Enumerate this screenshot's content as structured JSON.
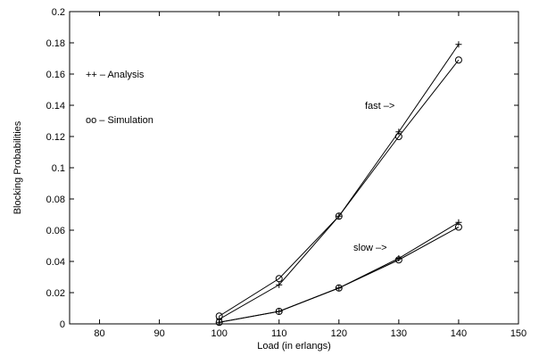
{
  "chart_data": {
    "type": "line",
    "title": "",
    "xlabel": "Load (in erlangs)",
    "ylabel": "Blocking Probabilities",
    "xlim": [
      75,
      150
    ],
    "ylim": [
      0,
      0.2
    ],
    "xticks": [
      80,
      90,
      100,
      110,
      120,
      130,
      140,
      150
    ],
    "yticks": [
      0,
      0.02,
      0.04,
      0.06,
      0.08,
      0.1,
      0.12,
      0.14,
      0.16,
      0.18,
      0.2
    ],
    "grid": false,
    "series": [
      {
        "group": "fast",
        "marker": "plus",
        "x": [
          100,
          110,
          120,
          130,
          140
        ],
        "y": [
          0.003,
          0.025,
          0.069,
          0.123,
          0.179
        ]
      },
      {
        "group": "fast",
        "marker": "circle",
        "x": [
          100,
          110,
          120,
          130,
          140
        ],
        "y": [
          0.005,
          0.029,
          0.069,
          0.12,
          0.169
        ]
      },
      {
        "group": "slow",
        "marker": "plus",
        "x": [
          100,
          110,
          120,
          130,
          140
        ],
        "y": [
          0.001,
          0.008,
          0.023,
          0.042,
          0.065
        ]
      },
      {
        "group": "slow",
        "marker": "circle",
        "x": [
          100,
          110,
          120,
          130,
          140
        ],
        "y": [
          0.001,
          0.008,
          0.023,
          0.041,
          0.062
        ]
      }
    ],
    "annotations": {
      "analysis": "++ – Analysis",
      "simulation": "oo – Simulation",
      "fast": "fast –>",
      "slow": "slow –>"
    }
  }
}
